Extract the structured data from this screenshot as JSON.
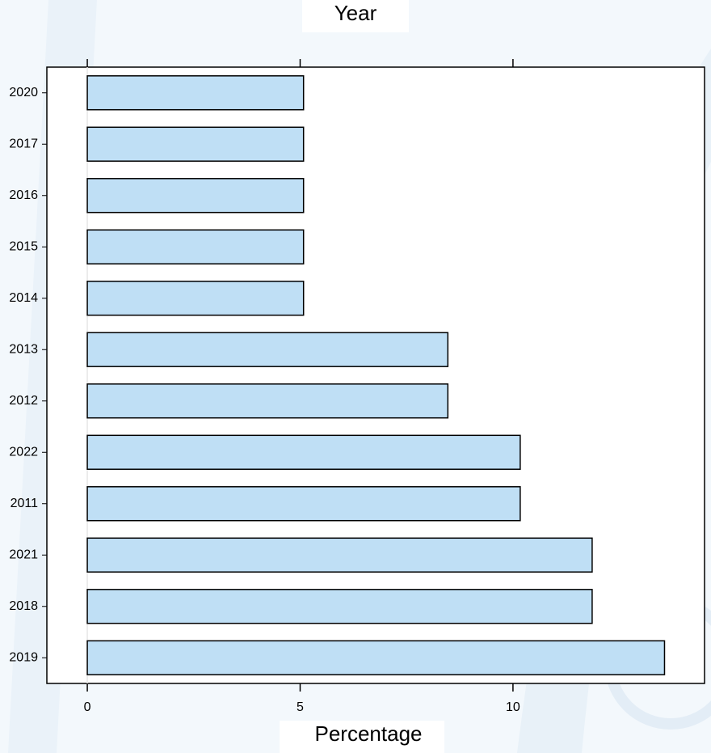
{
  "chart_data": {
    "type": "barh",
    "title": "Year",
    "xlabel": "Percentage",
    "categories": [
      "2020",
      "2017",
      "2016",
      "2015",
      "2014",
      "2013",
      "2012",
      "2022",
      "2011",
      "2021",
      "2018",
      "2019"
    ],
    "values": [
      5.08,
      5.08,
      5.08,
      5.08,
      5.08,
      8.47,
      8.47,
      10.17,
      10.17,
      11.86,
      11.86,
      13.56
    ],
    "color": "#bfdff5",
    "xlim": [
      -0.95,
      14.5
    ],
    "xticks": [
      0,
      5,
      10
    ]
  }
}
